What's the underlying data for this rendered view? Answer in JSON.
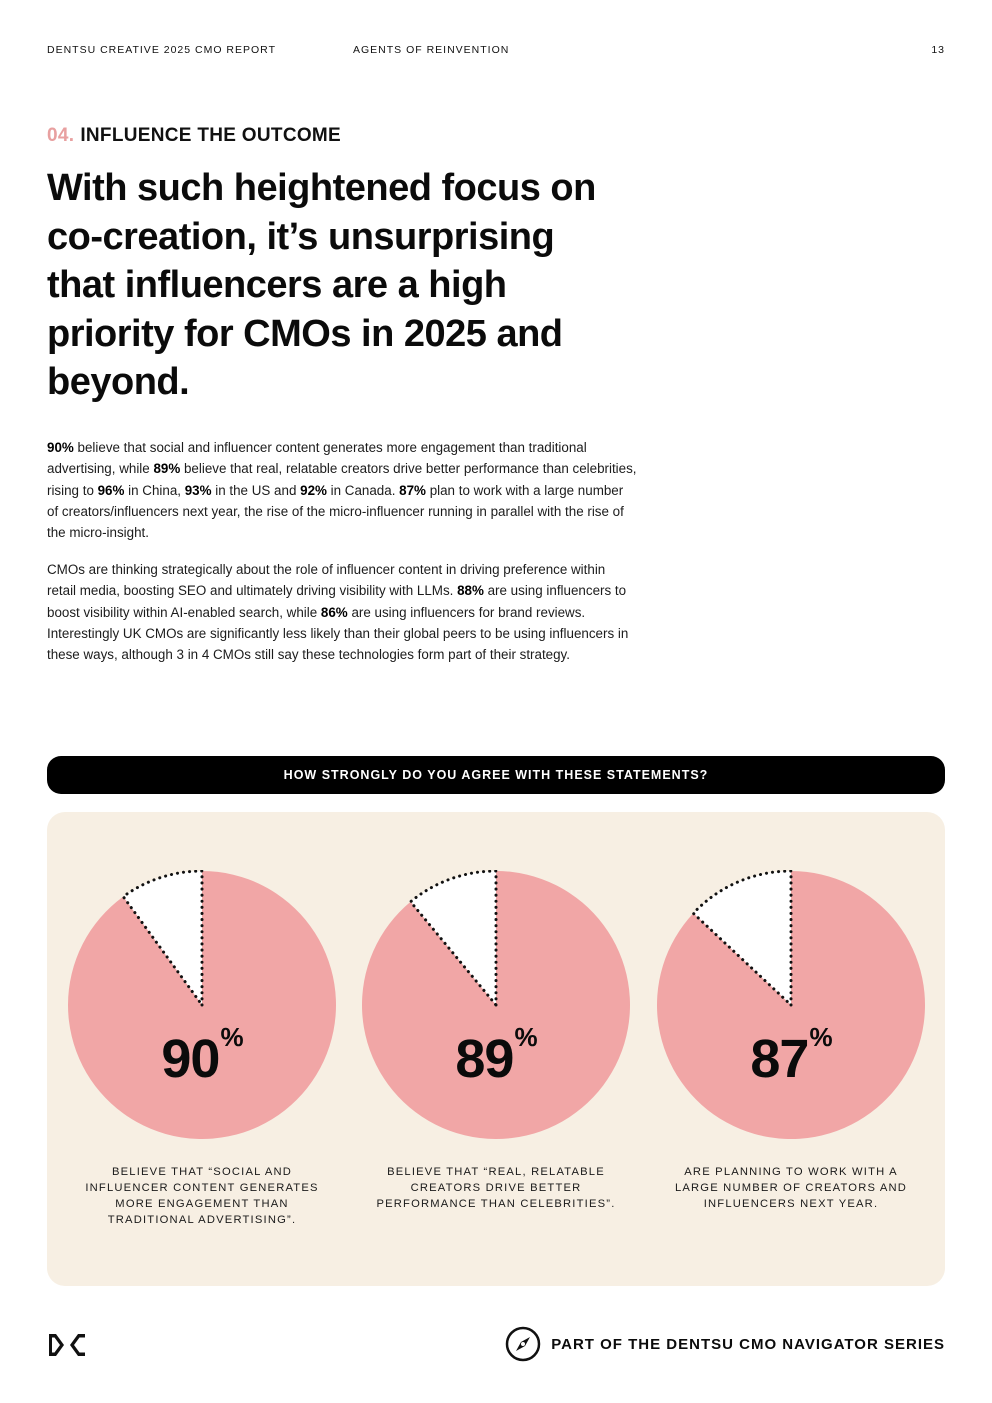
{
  "header": {
    "report": "DENTSU CREATIVE 2025 CMO REPORT",
    "chapter": "AGENTS OF REINVENTION",
    "page_number": "13"
  },
  "section": {
    "number": "04.",
    "title": "INFLUENCE THE OUTCOME"
  },
  "headline": "With such heightened focus on co-creation, it’s unsurprising that influencers are a high priority for CMOs in 2025 and beyond.",
  "paragraph1": [
    {
      "t": "90%",
      "b": true
    },
    {
      "t": " believe that social and influencer content generates more engagement than traditional advertising, while "
    },
    {
      "t": "89%",
      "b": true
    },
    {
      "t": " believe that real, relatable creators drive better performance than celebrities, rising to "
    },
    {
      "t": "96%",
      "b": true
    },
    {
      "t": " in China, "
    },
    {
      "t": "93%",
      "b": true
    },
    {
      "t": " in the US and "
    },
    {
      "t": "92%",
      "b": true
    },
    {
      "t": " in Canada. "
    },
    {
      "t": "87%",
      "b": true
    },
    {
      "t": " plan to work with a large number of creators/influencers next year, the rise of the micro-influencer running in parallel with the rise of the micro-insight."
    }
  ],
  "paragraph2": [
    {
      "t": "CMOs are thinking strategically about the role of influencer content in driving preference within retail media, boosting SEO and ultimately driving visibility with LLMs. "
    },
    {
      "t": "88%",
      "b": true
    },
    {
      "t": " are using influencers to boost visibility within AI-enabled search, while "
    },
    {
      "t": "86%",
      "b": true
    },
    {
      "t": " are using influencers for brand reviews. Interestingly UK CMOs are significantly less likely than their global peers to be using influencers in these ways, although 3 in 4 CMOs still say these technologies form part of their strategy."
    }
  ],
  "banner": "HOW STRONGLY DO YOU AGREE WITH THESE STATEMENTS?",
  "chart_data": {
    "type": "pie",
    "title": "HOW STRONGLY DO YOU AGREE WITH THESE STATEMENTS?",
    "items": [
      {
        "value": 90,
        "label": "90",
        "unit": "%",
        "caption": "BELIEVE THAT “SOCIAL AND INFLUENCER CONTENT GENERATES MORE ENGAGEMENT THAN TRADITIONAL ADVERTISING”."
      },
      {
        "value": 89,
        "label": "89",
        "unit": "%",
        "caption": "BELIEVE THAT “REAL, RELATABLE CREATORS DRIVE BETTER PERFORMANCE THAN CELEBRITIES”."
      },
      {
        "value": 87,
        "label": "87",
        "unit": "%",
        "caption": "ARE PLANNING TO WORK WITH A LARGE NUMBER OF CREATORS AND INFLUENCERS NEXT YEAR."
      }
    ]
  },
  "colors": {
    "accent_pink": "#f1a6a6",
    "section_number": "#e8a0a0",
    "panel_bg": "#f7efe3",
    "remainder_fill": "#ffffff"
  },
  "footer": {
    "series": "PART OF THE DENTSU CMO NAVIGATOR SERIES",
    "logo_icon": "dentsu-dc-logo-icon",
    "compass_icon": "compass-icon"
  }
}
